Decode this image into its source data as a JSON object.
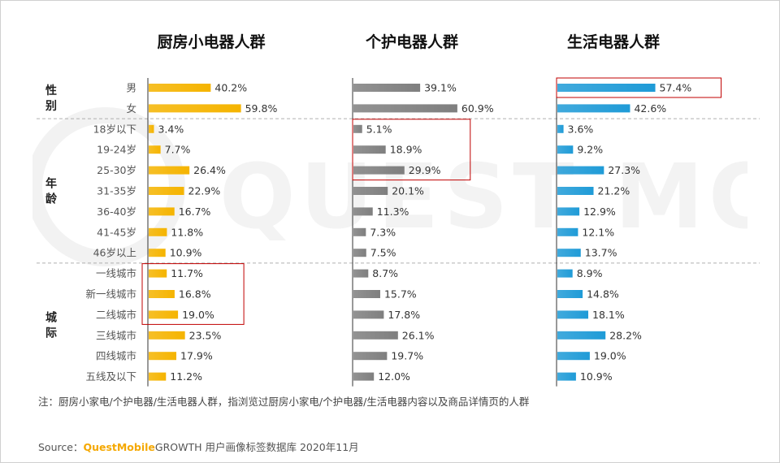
{
  "watermark_text": "QUEST MOBILE",
  "chart_data": {
    "type": "bar",
    "orientation": "horizontal",
    "categories": [
      "男",
      "女",
      "18岁以下",
      "19-24岁",
      "25-30岁",
      "31-35岁",
      "36-40岁",
      "41-45岁",
      "46岁以上",
      "一线城市",
      "新一线城市",
      "二线城市",
      "三线城市",
      "四线城市",
      "五线及以下"
    ],
    "groups": [
      {
        "label": "性别",
        "categories": [
          "男",
          "女"
        ]
      },
      {
        "label": "年龄",
        "categories": [
          "18岁以下",
          "19-24岁",
          "25-30岁",
          "31-35岁",
          "36-40岁",
          "41-45岁",
          "46岁以上"
        ]
      },
      {
        "label": "城际",
        "categories": [
          "一线城市",
          "新一线城市",
          "二线城市",
          "三线城市",
          "四线城市",
          "五线及以下"
        ]
      }
    ],
    "series": [
      {
        "name": "厨房小电器人群",
        "color": "#f5b400",
        "values": [
          40.2,
          59.8,
          3.4,
          7.7,
          26.4,
          22.9,
          16.7,
          11.8,
          10.9,
          11.7,
          16.8,
          19.0,
          23.5,
          17.9,
          11.2
        ],
        "labels": [
          "40.2%",
          "59.8%",
          "3.4%",
          "7.7%",
          "26.4%",
          "22.9%",
          "16.7%",
          "11.8%",
          "10.9%",
          "11.7%",
          "16.8%",
          "19.0%",
          "23.5%",
          "17.9%",
          "11.2%"
        ]
      },
      {
        "name": "个护电器人群",
        "color": "#7f7f7f",
        "values": [
          39.1,
          60.9,
          5.1,
          18.9,
          29.9,
          20.1,
          11.3,
          7.3,
          7.5,
          8.7,
          15.7,
          17.8,
          26.1,
          19.7,
          12.0
        ],
        "labels": [
          "39.1%",
          "60.9%",
          "5.1%",
          "18.9%",
          "29.9%",
          "20.1%",
          "11.3%",
          "7.3%",
          "7.5%",
          "8.7%",
          "15.7%",
          "17.8%",
          "26.1%",
          "19.7%",
          "12.0%"
        ]
      },
      {
        "name": "生活电器人群",
        "color": "#1f9bd7",
        "values": [
          57.4,
          42.6,
          3.6,
          9.2,
          27.3,
          21.2,
          12.9,
          12.1,
          13.7,
          8.9,
          14.8,
          18.1,
          28.2,
          19.0,
          10.9
        ],
        "labels": [
          "57.4%",
          "42.6%",
          "3.6%",
          "9.2%",
          "27.3%",
          "21.2%",
          "12.9%",
          "12.1%",
          "13.7%",
          "8.9%",
          "14.8%",
          "18.1%",
          "28.2%",
          "19.0%",
          "10.9%"
        ]
      }
    ],
    "highlight_color": "#c00000",
    "highlights": [
      {
        "series": 0,
        "categories": [
          "一线城市",
          "新一线城市",
          "二线城市"
        ]
      },
      {
        "series": 1,
        "categories": [
          "18岁以下",
          "19-24岁",
          "25-30岁"
        ]
      },
      {
        "series": 2,
        "categories": [
          "男"
        ]
      }
    ]
  },
  "note": "注：厨房小家电/个护电器/生活电器人群，指浏览过厨房小家电/个护电器/生活电器内容以及商品详情页的人群",
  "source": {
    "label": "Source：",
    "brand": "QuestMobile",
    "text": "GROWTH 用户画像标签数据库 2020年11月"
  }
}
